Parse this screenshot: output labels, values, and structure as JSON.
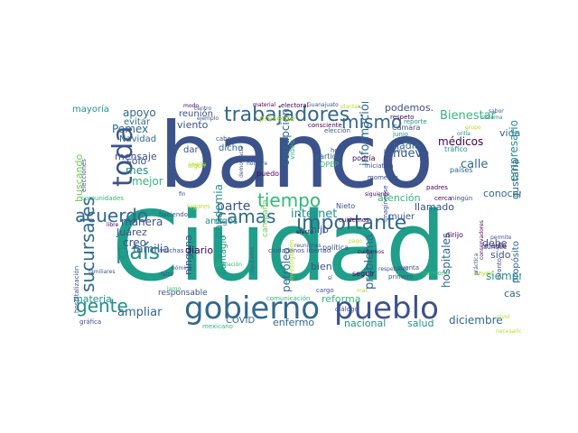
{
  "palette": {
    "dark_purple": "#440154",
    "indigo": "#3b528b",
    "blue": "#31688e",
    "teal": "#21918c",
    "green_teal": "#1f9e89",
    "green": "#35b779",
    "lime": "#6ece58",
    "yellow_green": "#b5de2b",
    "yellow": "#fde725"
  },
  "words": [
    {
      "text": "banco",
      "color": "#3b528b"
    },
    {
      "text": "Ciudad",
      "color": "#1f9e89"
    },
    {
      "text": "gobierno",
      "color": "#31688e"
    },
    {
      "text": "pueblo",
      "color": "#3b528b"
    },
    {
      "text": "trabajadores",
      "color": "#31688e"
    },
    {
      "text": "toda",
      "color": "#3b528b"
    },
    {
      "text": "país",
      "color": "#21918c"
    },
    {
      "text": "acuerdo",
      "color": "#31688e"
    },
    {
      "text": "gente",
      "color": "#21918c"
    },
    {
      "text": "camas",
      "color": "#31688e"
    },
    {
      "text": "importante",
      "color": "#31688e"
    },
    {
      "text": "tiempo",
      "color": "#35b779"
    },
    {
      "text": "mismo",
      "color": "#31688e"
    },
    {
      "text": "sucursales",
      "color": "#31688e"
    },
    {
      "text": "internet",
      "color": "#21918c"
    },
    {
      "text": "parte",
      "color": "#3b528b"
    },
    {
      "text": "manera",
      "color": "#3b528b"
    },
    {
      "text": "familia",
      "color": "#3b528b"
    },
    {
      "text": "creo",
      "color": "#3b528b"
    },
    {
      "text": "Juárez",
      "color": "#3b528b"
    },
    {
      "text": "ampliar",
      "color": "#31688e"
    },
    {
      "text": "materia",
      "color": "#21918c"
    },
    {
      "text": "COVID",
      "color": "#31688e"
    },
    {
      "text": "enfermo",
      "color": "#31688e"
    },
    {
      "text": "nacional",
      "color": "#21918c"
    },
    {
      "text": "salud",
      "color": "#21918c"
    },
    {
      "text": "diciembre",
      "color": "#31688e"
    },
    {
      "text": "casa",
      "color": "#31688e"
    },
    {
      "text": "siempre",
      "color": "#21918c"
    },
    {
      "text": "hospitales",
      "color": "#31688e"
    },
    {
      "text": "conocer",
      "color": "#31688e"
    },
    {
      "text": "llamado",
      "color": "#3b528b"
    },
    {
      "text": "atención",
      "color": "#35b779"
    },
    {
      "text": "Bienestar",
      "color": "#35b779"
    },
    {
      "text": "vida",
      "color": "#31688e"
    },
    {
      "text": "empresario",
      "color": "#21918c"
    },
    {
      "text": "gustaría",
      "color": "#31688e"
    },
    {
      "text": "calle",
      "color": "#31688e"
    },
    {
      "text": "nuevo",
      "color": "#3b528b"
    },
    {
      "text": "nadie",
      "color": "#31688e"
    },
    {
      "text": "médicos",
      "color": "#440154"
    },
    {
      "text": "podemos.",
      "color": "#3b528b"
    },
    {
      "text": "reunión",
      "color": "#3b528b"
    },
    {
      "text": "apoyo",
      "color": "#31688e"
    },
    {
      "text": "mayoría",
      "color": "#21918c"
    },
    {
      "text": "Pemex",
      "color": "#31688e"
    },
    {
      "text": "evitar",
      "color": "#31688e"
    },
    {
      "text": "Navidad",
      "color": "#31688e"
    },
    {
      "text": "sólo",
      "color": "#3b528b"
    },
    {
      "text": "mensaje",
      "color": "#3b528b"
    },
    {
      "text": "mes",
      "color": "#21918c"
    },
    {
      "text": "mejor",
      "color": "#35b779"
    },
    {
      "text": "buscando",
      "color": "#6ece58"
    },
    {
      "text": "viento",
      "color": "#3b528b"
    },
    {
      "text": "dicho",
      "color": "#31688e"
    },
    {
      "text": "dar",
      "color": "#3b528b"
    },
    {
      "text": "pandemia",
      "color": "#21918c"
    },
    {
      "text": "contagio",
      "color": "#21918c"
    },
    {
      "text": "ninguna",
      "color": "#3b528b"
    },
    {
      "text": "diario",
      "color": "#440154"
    },
    {
      "text": "amigos",
      "color": "#21918c"
    },
    {
      "text": "corrupción",
      "color": "#31688e"
    },
    {
      "text": "información",
      "color": "#31688e"
    },
    {
      "text": "petróleo",
      "color": "#31688e"
    },
    {
      "text": "hijo",
      "color": "#3b528b"
    },
    {
      "text": "bien",
      "color": "#3b528b"
    },
    {
      "text": "reforma",
      "color": "#35b779"
    },
    {
      "text": "problema",
      "color": "#31688e"
    },
    {
      "text": "mujer",
      "color": "#3b528b"
    },
    {
      "text": "debe",
      "color": "#3b528b"
    },
    {
      "text": "sido",
      "color": "#3b528b"
    },
    {
      "text": "propósito",
      "color": "#31688e"
    },
    {
      "text": "responsable",
      "color": "#3b528b"
    },
    {
      "text": "campaña",
      "color": "#6ece58"
    },
    {
      "text": "presente",
      "color": "#b5de2b"
    },
    {
      "text": "puedo",
      "color": "#440154"
    },
    {
      "text": "video",
      "color": "#35b779"
    },
    {
      "text": "partido",
      "color": "#31688e"
    },
    {
      "text": "OPEP",
      "color": "#35b779"
    },
    {
      "text": "Nieto",
      "color": "#3b528b"
    },
    {
      "text": "política",
      "color": "#3b528b"
    },
    {
      "text": "seguir",
      "color": "#440154"
    },
    {
      "text": "medio",
      "color": "#440154"
    },
    {
      "text": "dirijo",
      "color": "#440154"
    },
    {
      "text": "tráfico",
      "color": "#21918c"
    },
    {
      "text": "países",
      "color": "#31688e"
    },
    {
      "text": "ningún",
      "color": "#3b528b"
    },
    {
      "text": "cerca",
      "color": "#440154"
    },
    {
      "text": "padres",
      "color": "#440154"
    },
    {
      "text": "electoral",
      "color": "#440154"
    },
    {
      "text": "material",
      "color": "#440154"
    },
    {
      "text": "Guanajuato",
      "color": "#3b528b"
    },
    {
      "text": "respeto",
      "color": "#440154"
    },
    {
      "text": "reporte",
      "color": "#21918c"
    },
    {
      "text": "Cámara",
      "color": "#3b528b"
    },
    {
      "text": "junio",
      "color": "#21918c"
    },
    {
      "text": "consciente",
      "color": "#440154"
    },
    {
      "text": "elección",
      "color": "#3b528b"
    },
    {
      "text": "iniciativa",
      "color": "#3b528b"
    },
    {
      "text": "momento",
      "color": "#3b528b"
    },
    {
      "text": "podría",
      "color": "#440154"
    },
    {
      "text": "hoy",
      "color": "#3b528b"
    },
    {
      "text": "cabo",
      "color": "#3b528b"
    },
    {
      "text": "algún",
      "color": "#b5de2b"
    },
    {
      "text": "lugares",
      "color": "#b5de2b"
    },
    {
      "text": "haciendo",
      "color": "#3b528b"
    },
    {
      "text": "comunidades",
      "color": "#35b779"
    },
    {
      "text": "elecciones",
      "color": "#3b528b"
    },
    {
      "text": "muchas",
      "color": "#3b528b"
    },
    {
      "text": "nómina",
      "color": "#3b528b"
    },
    {
      "text": "libre",
      "color": "#440154"
    },
    {
      "text": "hospitalización",
      "color": "#3b528b"
    },
    {
      "text": "gráfica",
      "color": "#3b528b"
    },
    {
      "text": "familiares",
      "color": "#3b528b"
    },
    {
      "text": "falta",
      "color": "#3b528b"
    },
    {
      "text": "Diputados",
      "color": "#31688e"
    },
    {
      "text": "población",
      "color": "#35b779"
    },
    {
      "text": "efecto",
      "color": "#440154"
    },
    {
      "text": "Imagínense",
      "color": "#3b528b"
    },
    {
      "text": "respetuoso",
      "color": "#3b528b"
    },
    {
      "text": "reuniones",
      "color": "#3b528b"
    },
    {
      "text": "cuidemos",
      "color": "#440154"
    },
    {
      "text": "ciudadanos libertad",
      "color": "#3b528b"
    },
    {
      "text": "comunicación",
      "color": "#35b779"
    },
    {
      "text": "diálogo",
      "color": "#3b528b"
    },
    {
      "text": "cuenta",
      "color": "#3b528b"
    },
    {
      "text": "primero",
      "color": "#3b528b"
    },
    {
      "text": "territorio",
      "color": "#35b779"
    },
    {
      "text": "permite",
      "color": "#3b528b"
    },
    {
      "text": "aunque",
      "color": "#3b528b"
    },
    {
      "text": "Reyes",
      "color": "#b5de2b"
    },
    {
      "text": "pronto",
      "color": "#3b528b"
    },
    {
      "text": "cargo",
      "color": "#3b528b"
    },
    {
      "text": "investigación",
      "color": "#b5de2b"
    },
    {
      "text": "mexicano",
      "color": "#35b779"
    },
    {
      "text": "centro",
      "color": "#3b528b"
    },
    {
      "text": "ejemplo",
      "color": "#3b528b"
    },
    {
      "text": "siguiente",
      "color": "#440154"
    },
    {
      "text": "sistema",
      "color": "#21918c"
    },
    {
      "text": "grupo",
      "color": "#b5de2b"
    },
    {
      "text": "orilla",
      "color": "#21918c"
    },
    {
      "text": "sabor",
      "color": "#3b528b"
    },
    {
      "text": "modo",
      "color": "#440154"
    },
    {
      "text": "democracia",
      "color": "#3b528b"
    },
    {
      "text": "hombre",
      "color": "#3b528b"
    },
    {
      "text": "amplía",
      "color": "#b5de2b"
    },
    {
      "text": "fin",
      "color": "#3b528b"
    },
    {
      "text": "largo",
      "color": "#35b779"
    },
    {
      "text": "cuidarnos",
      "color": "#440154"
    },
    {
      "text": "próxima",
      "color": "#3b528b"
    },
    {
      "text": "plantar",
      "color": "#b5de2b"
    },
    {
      "text": "conservadores",
      "color": "#440154"
    },
    {
      "text": "práctica",
      "color": "#3b528b"
    },
    {
      "text": "pago",
      "color": "#b5de2b"
    },
    {
      "text": "sí",
      "color": "#3b528b"
    },
    {
      "text": "mar",
      "color": "#b5de2b"
    },
    {
      "text": "nivel",
      "color": "#b5de2b"
    },
    {
      "text": "necesario",
      "color": "#b5de2b"
    }
  ]
}
